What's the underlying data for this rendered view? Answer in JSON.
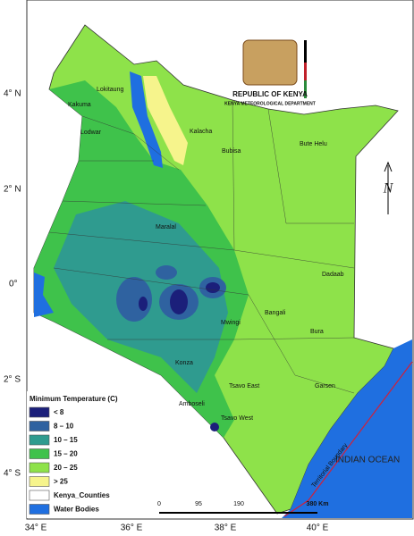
{
  "map": {
    "logo": {
      "country": "REPUBLIC OF KENYA",
      "department": "KENYA METEOROLOGICAL DEPARTMENT"
    },
    "latitude_labels": [
      "4° N",
      "2° N",
      "0°",
      "2° S",
      "4° S"
    ],
    "longitude_labels": [
      "34° E",
      "36° E",
      "38° E",
      "40° E"
    ],
    "towns": [
      "Lokitaung",
      "Kakuma",
      "Lodwar",
      "Kalacha",
      "Bubisa",
      "Bute Helu",
      "Maralal",
      "Dadaab",
      "Bangali",
      "Mwingi",
      "Bura",
      "Konza",
      "Tsavo East",
      "Garsen",
      "Amboseli",
      "Tsavo West"
    ],
    "legend": {
      "title": "Minimum Temperature (C)",
      "items": [
        {
          "label": "< 8",
          "color": "#1b1f7a"
        },
        {
          "label": "8 – 10",
          "color": "#2f62a0"
        },
        {
          "label": "10 – 15",
          "color": "#2f9b8f"
        },
        {
          "label": "15 – 20",
          "color": "#3fc24b"
        },
        {
          "label": "20 – 25",
          "color": "#8ee24a"
        },
        {
          "label": "> 25",
          "color": "#f6f48c"
        },
        {
          "label": "Kenya_Counties",
          "color": "#ffffff"
        },
        {
          "label": "Water Bodies",
          "color": "#1f6fe0"
        }
      ]
    },
    "water_label": "INDIAN OCEAN",
    "boundary_label": "Territorial Boundary",
    "scale": [
      "0",
      "95",
      "190",
      "380 Km"
    ],
    "north": "N"
  }
}
